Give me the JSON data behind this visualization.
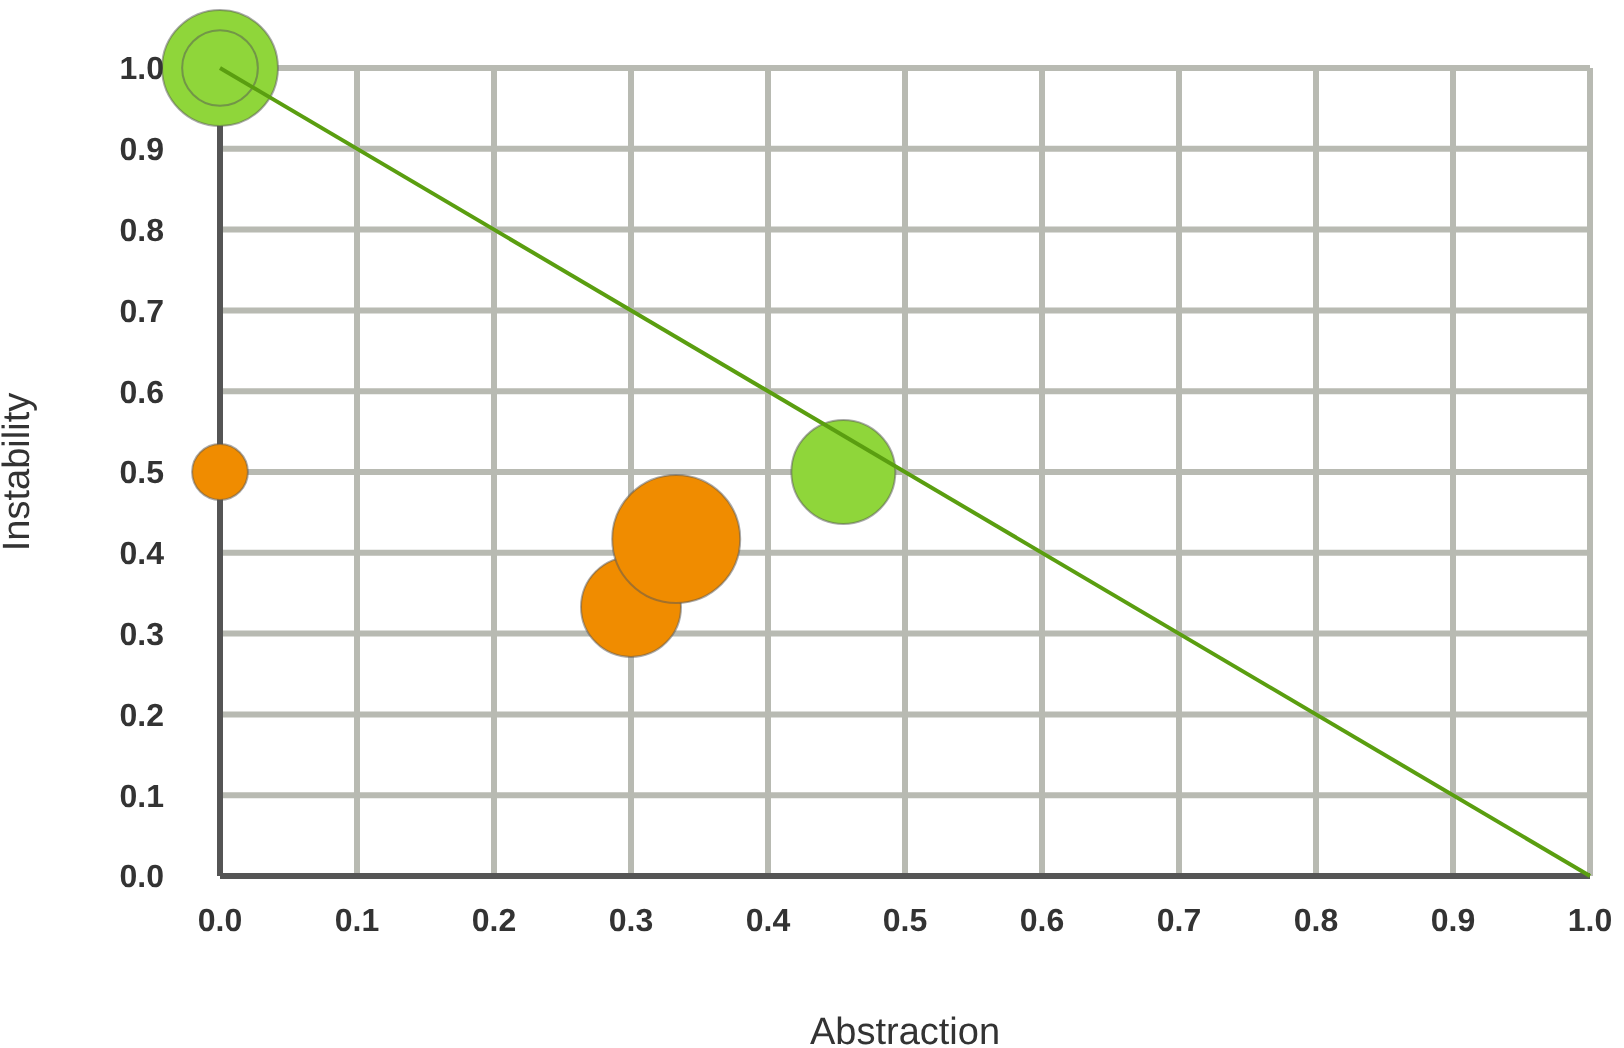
{
  "chart_data": {
    "type": "bubble",
    "xlabel": "Abstraction",
    "ylabel": "Instability",
    "xlim": [
      0,
      1
    ],
    "ylim": [
      0,
      1
    ],
    "xticks": [
      {
        "value": 0,
        "label": "0.0"
      },
      0.1,
      0.2,
      0.3,
      0.4,
      0.5,
      0.6,
      0.7,
      0.8,
      0.9,
      {
        "value": 1,
        "label": "1.0"
      }
    ],
    "yticks": [
      {
        "value": 0,
        "label": "0.0"
      },
      0.1,
      0.2,
      0.3,
      0.4,
      0.5,
      0.6,
      0.7,
      0.8,
      0.9,
      {
        "value": 1,
        "label": "1.0"
      }
    ],
    "grid": true,
    "legend": false,
    "series": [
      {
        "x": [
          0,
          0,
          0,
          0.3,
          0.333,
          0.455
        ],
        "values": [
          1,
          1,
          0.5,
          0.333,
          0.417,
          0.5
        ],
        "sizes": [
          0.82,
          0.35,
          0.19,
          0.61,
          1,
          0.66
        ],
        "colors": [
          "#8fd63a",
          "#8fd63a",
          "#f08c00",
          "#f08c00",
          "#f08c00",
          "#8fd63a"
        ]
      },
      {
        "type": "line",
        "color": "#5a9e10",
        "x": [
          0,
          1
        ],
        "values": [
          1,
          0
        ],
        "marker": "none"
      }
    ]
  }
}
